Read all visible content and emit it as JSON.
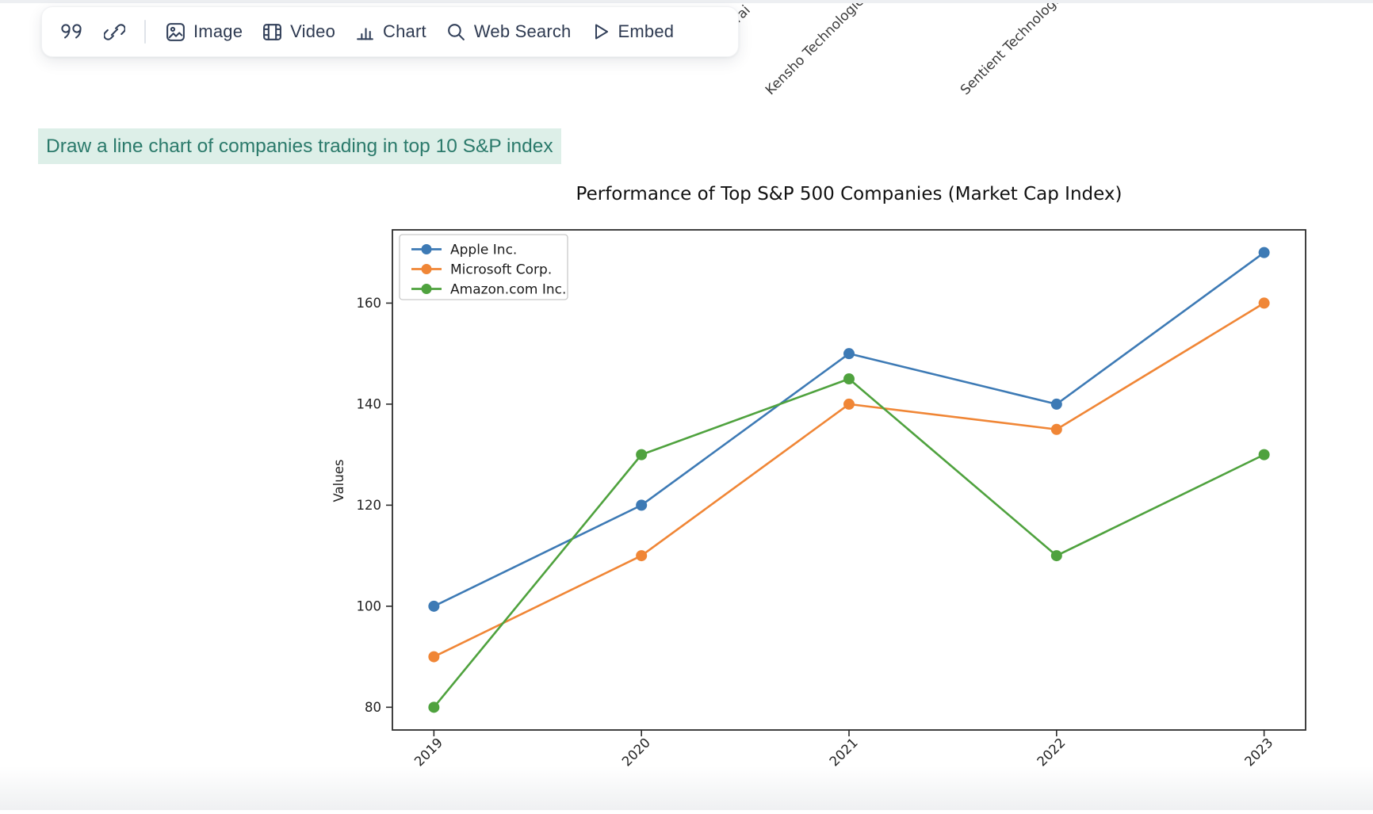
{
  "page": {
    "top_strip_color": "#edeff2",
    "bottom_fade_color": "#eff0f2",
    "background": "#ffffff"
  },
  "toolbar": {
    "icon_color": "#32405a",
    "quote_button": {
      "icon": "quote-icon"
    },
    "link_button": {
      "icon": "link-icon"
    },
    "buttons": [
      {
        "label": "Image",
        "icon": "image-icon"
      },
      {
        "label": "Video",
        "icon": "video-icon"
      },
      {
        "label": "Chart",
        "icon": "chart-icon"
      },
      {
        "label": "Web Search",
        "icon": "search-icon"
      },
      {
        "label": "Embed",
        "icon": "play-icon"
      }
    ]
  },
  "background_chart_labels": [
    "merai",
    "Kensho Technologies",
    "Sentient Technologies"
  ],
  "prompt": {
    "text": "Draw a line chart of companies trading in top 10 S&P index",
    "highlight_color": "#ddefe8",
    "text_color": "#2b7a6b"
  },
  "chart_data": {
    "type": "line",
    "title": "Performance of Top S&P 500 Companies (Market Cap Index)",
    "xlabel": "",
    "ylabel": "Values",
    "categories": [
      "2019",
      "2020",
      "2021",
      "2022",
      "2023"
    ],
    "series": [
      {
        "name": "Apple Inc.",
        "color": "#3d7ab5",
        "values": [
          100,
          120,
          150,
          140,
          170
        ]
      },
      {
        "name": "Microsoft Corp.",
        "color": "#f08636",
        "values": [
          90,
          110,
          140,
          135,
          160
        ]
      },
      {
        "name": "Amazon.com Inc.",
        "color": "#4fa23e",
        "values": [
          80,
          130,
          145,
          110,
          130
        ]
      }
    ],
    "ylim": [
      75.5,
      174.5
    ],
    "xlim": [
      -0.2,
      4.2
    ],
    "yticks": [
      80,
      100,
      120,
      140,
      160
    ],
    "grid": false,
    "legend_position": "upper left",
    "x_tick_rotation": 45,
    "marker": "o",
    "text_color": "#222222",
    "spine_color": "#2b2b2b"
  }
}
